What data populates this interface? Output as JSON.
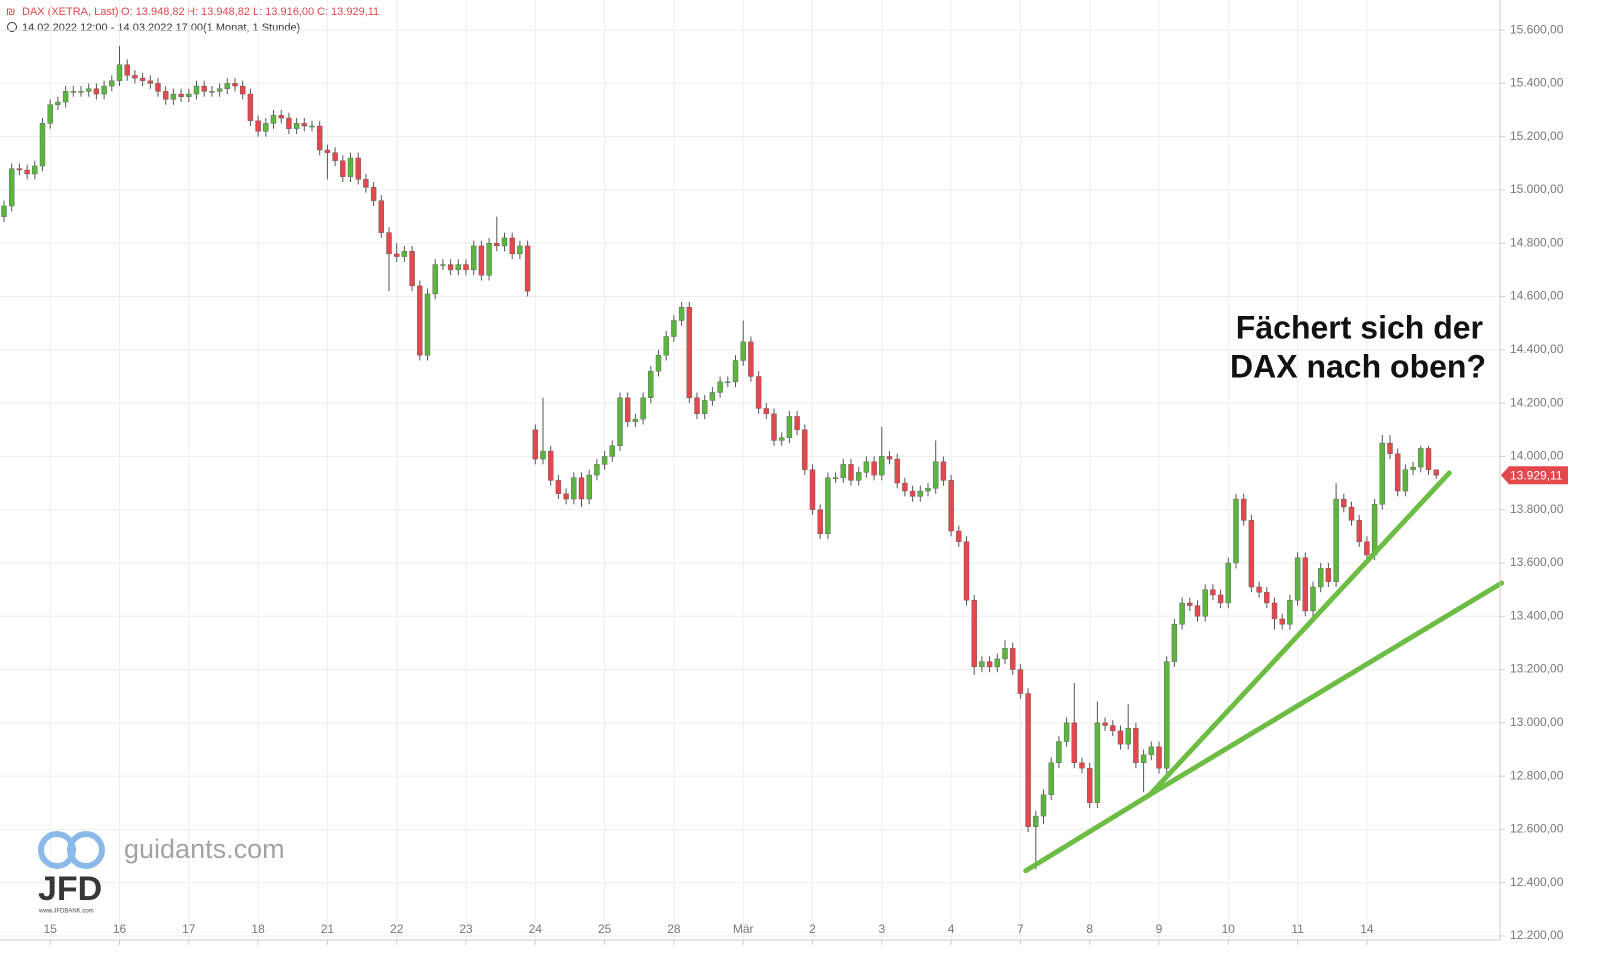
{
  "chart_data": {
    "type": "candlestick",
    "legend": {
      "name": "DAX (XETRA, Last)",
      "o": "O: 13.948,82",
      "h": "H: 13.948,82",
      "l": "L: 13.916,00",
      "c": "C: 13.929,11"
    },
    "subtitle": "14.02.2022 12:00 - 14.03.2022 17:00",
    "interval": "(1 Monat, 1 Stunde)",
    "annotation": [
      "Fächert sich der",
      "DAX nach oben?"
    ],
    "last_price_label": "13.929,11",
    "watermark": {
      "site": "guidants.com",
      "logo": "JFD",
      "url": "www.JFDBANK.com"
    },
    "up_color": "#5cb53f",
    "down_color": "#e4474c",
    "grid": true,
    "ylim": [
      12185,
      15713
    ],
    "yticks": [
      {
        "value": 12200,
        "label": "12.200,00"
      },
      {
        "value": 12400,
        "label": "12.400,00"
      },
      {
        "value": 12600,
        "label": "12.600,00"
      },
      {
        "value": 12800,
        "label": "12.800,00"
      },
      {
        "value": 13000,
        "label": "13.000,00"
      },
      {
        "value": 13200,
        "label": "13.200,00"
      },
      {
        "value": 13400,
        "label": "13.400,00"
      },
      {
        "value": 13600,
        "label": "13.600,00"
      },
      {
        "value": 13800,
        "label": "13.800,00"
      },
      {
        "value": 14000,
        "label": "14.000,00"
      },
      {
        "value": 14200,
        "label": "14.200,00"
      },
      {
        "value": 14400,
        "label": "14.400,00"
      },
      {
        "value": 14600,
        "label": "14.600,00"
      },
      {
        "value": 14800,
        "label": "14.800,00"
      },
      {
        "value": 15000,
        "label": "15.000,00"
      },
      {
        "value": 15200,
        "label": "15.200,00"
      },
      {
        "value": 15400,
        "label": "15.400,00"
      },
      {
        "value": 15600,
        "label": "15.600,00"
      }
    ],
    "categories": [
      null,
      null,
      null,
      null,
      null,
      null,
      "15",
      null,
      null,
      null,
      null,
      null,
      null,
      null,
      null,
      "16",
      null,
      null,
      null,
      null,
      null,
      null,
      null,
      null,
      "17",
      null,
      null,
      null,
      null,
      null,
      null,
      null,
      null,
      "18",
      null,
      null,
      null,
      null,
      null,
      null,
      null,
      null,
      "21",
      null,
      null,
      null,
      null,
      null,
      null,
      null,
      null,
      "22",
      null,
      null,
      null,
      null,
      null,
      null,
      null,
      null,
      "23",
      null,
      null,
      null,
      null,
      null,
      null,
      null,
      null,
      "24",
      null,
      null,
      null,
      null,
      null,
      null,
      null,
      null,
      "25",
      null,
      null,
      null,
      null,
      null,
      null,
      null,
      null,
      "28",
      null,
      null,
      null,
      null,
      null,
      null,
      null,
      null,
      "Mär",
      null,
      null,
      null,
      null,
      null,
      null,
      null,
      null,
      "2",
      null,
      null,
      null,
      null,
      null,
      null,
      null,
      null,
      "3",
      null,
      null,
      null,
      null,
      null,
      null,
      null,
      null,
      "4",
      null,
      null,
      null,
      null,
      null,
      null,
      null,
      null,
      "7",
      null,
      null,
      null,
      null,
      null,
      null,
      null,
      null,
      "8",
      null,
      null,
      null,
      null,
      null,
      null,
      null,
      null,
      "9",
      null,
      null,
      null,
      null,
      null,
      null,
      null,
      null,
      "10",
      null,
      null,
      null,
      null,
      null,
      null,
      null,
      null,
      "11",
      null,
      null,
      null,
      null,
      null,
      null,
      null,
      null,
      "14",
      null,
      null,
      null,
      null,
      null,
      null,
      null,
      null,
      null
    ],
    "open": [
      14900,
      14940,
      15080,
      15075,
      15060,
      15090,
      15250,
      15320,
      15330,
      15370,
      15370,
      15370,
      15380,
      15360,
      15390,
      15410,
      15470,
      15430,
      15420,
      15410,
      15400,
      15370,
      15340,
      15360,
      15350,
      15360,
      15390,
      15370,
      15370,
      15380,
      15400,
      15390,
      15360,
      15260,
      15220,
      15250,
      15280,
      15270,
      15230,
      15250,
      15240,
      15240,
      15150,
      15140,
      15110,
      15050,
      15120,
      15040,
      15010,
      14960,
      14840,
      14760,
      14750,
      14770,
      14640,
      14380,
      14610,
      14720,
      14720,
      14700,
      14720,
      14700,
      14790,
      14680,
      14800,
      14790,
      14820,
      14760,
      14790,
      14100,
      13990,
      14020,
      13910,
      13860,
      13840,
      13920,
      13840,
      13930,
      13970,
      14000,
      14040,
      14220,
      14130,
      14140,
      14220,
      14320,
      14380,
      14450,
      14510,
      14560,
      14220,
      14160,
      14210,
      14240,
      14280,
      14280,
      14360,
      14430,
      14300,
      14180,
      14160,
      14060,
      14070,
      14150,
      14100,
      13950,
      13800,
      13710,
      13920,
      13920,
      13970,
      13910,
      13940,
      13980,
      13930,
      14000,
      13990,
      13900,
      13870,
      13850,
      13870,
      13880,
      13980,
      13910,
      13720,
      13680,
      13460,
      13210,
      13230,
      13210,
      13240,
      13280,
      13200,
      13110,
      12610,
      12650,
      12730,
      12850,
      12930,
      13000,
      12850,
      12830,
      12700,
      13000,
      12990,
      12970,
      12920,
      12980,
      12850,
      12880,
      12910,
      12830,
      13230,
      13370,
      13450,
      13440,
      13400,
      13500,
      13480,
      13450,
      13600,
      13840,
      13760,
      13510,
      13490,
      13450,
      13390,
      13370,
      13460,
      13620,
      13420,
      13510,
      13580,
      13530,
      13840,
      13810,
      13760,
      13680,
      13630,
      13820,
      14050,
      14010,
      13870,
      13950,
      13960,
      14030,
      13950
    ],
    "high": [
      14960,
      15100,
      15100,
      15095,
      15110,
      15270,
      15340,
      15350,
      15390,
      15390,
      15390,
      15400,
      15400,
      15410,
      15430,
      15540,
      15490,
      15450,
      15440,
      15430,
      15420,
      15390,
      15380,
      15380,
      15380,
      15410,
      15410,
      15390,
      15400,
      15420,
      15420,
      15410,
      15380,
      15280,
      15270,
      15300,
      15300,
      15290,
      15270,
      15270,
      15260,
      15260,
      15170,
      15160,
      15130,
      15140,
      15140,
      15060,
      15030,
      14980,
      14860,
      14800,
      14790,
      14790,
      14660,
      14630,
      14740,
      14740,
      14740,
      14740,
      14740,
      14810,
      14810,
      14820,
      14900,
      14840,
      14840,
      14810,
      14810,
      14120,
      14220,
      14040,
      13930,
      13880,
      13940,
      13940,
      13950,
      13990,
      14020,
      14060,
      14240,
      14240,
      14160,
      14240,
      14340,
      14400,
      14470,
      14530,
      14580,
      14580,
      14240,
      14230,
      14260,
      14300,
      14300,
      14380,
      14510,
      14450,
      14320,
      14200,
      14180,
      14090,
      14170,
      14170,
      14120,
      13970,
      13820,
      13940,
      13940,
      13990,
      13990,
      13960,
      14000,
      14000,
      14110,
      14020,
      14010,
      13920,
      13890,
      13890,
      13900,
      14060,
      14000,
      13930,
      13740,
      13700,
      13480,
      13250,
      13250,
      13260,
      13310,
      13300,
      13220,
      13130,
      12670,
      12750,
      12870,
      12950,
      13020,
      13150,
      12870,
      12850,
      13080,
      13020,
      13010,
      12990,
      13070,
      13000,
      12900,
      12930,
      12930,
      13250,
      13390,
      13470,
      13470,
      13460,
      13520,
      13520,
      13500,
      13620,
      13860,
      13860,
      13780,
      13530,
      13510,
      13470,
      13410,
      13480,
      13640,
      13640,
      13530,
      13600,
      13600,
      13900,
      13860,
      13830,
      13780,
      13700,
      13840,
      14080,
      14080,
      14030,
      13970,
      13980,
      14040,
      14040,
      13948.82
    ],
    "low": [
      14880,
      14920,
      15055,
      15040,
      15040,
      15070,
      15230,
      15300,
      15310,
      15350,
      15350,
      15350,
      15340,
      15340,
      15370,
      15390,
      15410,
      15400,
      15390,
      15380,
      15350,
      15320,
      15320,
      15330,
      15330,
      15340,
      15350,
      15350,
      15350,
      15360,
      15370,
      15340,
      15240,
      15200,
      15200,
      15230,
      15250,
      15210,
      15210,
      15220,
      15220,
      15130,
      15040,
      15090,
      15030,
      15030,
      15020,
      14990,
      14940,
      14820,
      14620,
      14730,
      14730,
      14620,
      14360,
      14360,
      14590,
      14700,
      14680,
      14680,
      14680,
      14680,
      14660,
      14660,
      14770,
      14770,
      14740,
      14740,
      14600,
      13970,
      13970,
      13890,
      13840,
      13820,
      13820,
      13810,
      13820,
      13910,
      13950,
      13980,
      14020,
      14110,
      14110,
      14120,
      14200,
      14300,
      14360,
      14430,
      14490,
      14200,
      14140,
      14140,
      14190,
      14220,
      14260,
      14260,
      14340,
      14280,
      14160,
      14140,
      14040,
      14040,
      14050,
      14080,
      13930,
      13780,
      13690,
      13690,
      13900,
      13900,
      13890,
      13890,
      13920,
      13910,
      13910,
      13970,
      13880,
      13850,
      13830,
      13830,
      13850,
      13860,
      13890,
      13700,
      13660,
      13440,
      13180,
      13190,
      13190,
      13190,
      13220,
      13180,
      13090,
      12590,
      12450,
      12620,
      12710,
      12830,
      12910,
      12830,
      12810,
      12680,
      12680,
      12970,
      12950,
      12900,
      12900,
      12830,
      12740,
      12860,
      12810,
      12810,
      13210,
      13350,
      13420,
      13380,
      13380,
      13460,
      13430,
      13430,
      13580,
      13740,
      13490,
      13470,
      13430,
      13350,
      13350,
      13350,
      13440,
      13400,
      13400,
      13490,
      13510,
      13510,
      13790,
      13740,
      13660,
      13610,
      13610,
      13800,
      13990,
      13850,
      13850,
      13930,
      13940,
      13930,
      13916
    ],
    "close": [
      14940,
      15080,
      15075,
      15060,
      15090,
      15250,
      15320,
      15330,
      15370,
      15370,
      15370,
      15380,
      15360,
      15390,
      15410,
      15470,
      15430,
      15420,
      15410,
      15400,
      15370,
      15340,
      15360,
      15350,
      15360,
      15390,
      15370,
      15370,
      15380,
      15400,
      15390,
      15360,
      15260,
      15220,
      15250,
      15280,
      15270,
      15230,
      15250,
      15240,
      15240,
      15150,
      15140,
      15110,
      15050,
      15120,
      15040,
      15010,
      14960,
      14840,
      14760,
      14750,
      14770,
      14640,
      14380,
      14610,
      14720,
      14720,
      14700,
      14720,
      14700,
      14790,
      14680,
      14800,
      14790,
      14820,
      14760,
      14790,
      14620,
      13990,
      14020,
      13910,
      13860,
      13840,
      13920,
      13840,
      13930,
      13970,
      14000,
      14040,
      14220,
      14130,
      14140,
      14220,
      14320,
      14380,
      14450,
      14510,
      14560,
      14220,
      14160,
      14210,
      14240,
      14280,
      14280,
      14360,
      14430,
      14300,
      14180,
      14160,
      14060,
      14070,
      14150,
      14100,
      13950,
      13800,
      13710,
      13920,
      13920,
      13970,
      13910,
      13940,
      13980,
      13930,
      14000,
      13990,
      13900,
      13870,
      13850,
      13870,
      13880,
      13980,
      13910,
      13720,
      13680,
      13460,
      13210,
      13230,
      13210,
      13240,
      13280,
      13200,
      13110,
      12610,
      12650,
      12730,
      12850,
      12930,
      13000,
      12850,
      12830,
      12700,
      13000,
      12990,
      12970,
      12920,
      12980,
      12850,
      12880,
      12910,
      12830,
      13230,
      13370,
      13450,
      13440,
      13400,
      13500,
      13480,
      13450,
      13600,
      13840,
      13760,
      13510,
      13490,
      13450,
      13390,
      13370,
      13460,
      13620,
      13420,
      13510,
      13580,
      13530,
      13840,
      13810,
      13760,
      13680,
      13630,
      13820,
      14050,
      14010,
      13870,
      13950,
      13960,
      14030,
      13950,
      13929.11
    ],
    "trendlines": [
      {
        "color": "#6dbd45",
        "x": [
          132.7,
          148.8,
          187.7
        ],
        "y": [
          12445,
          12730,
          13938
        ]
      },
      {
        "color": "#6dbd45",
        "x": [
          148.8,
          194.5
        ],
        "y": [
          12730,
          13525
        ]
      }
    ]
  }
}
